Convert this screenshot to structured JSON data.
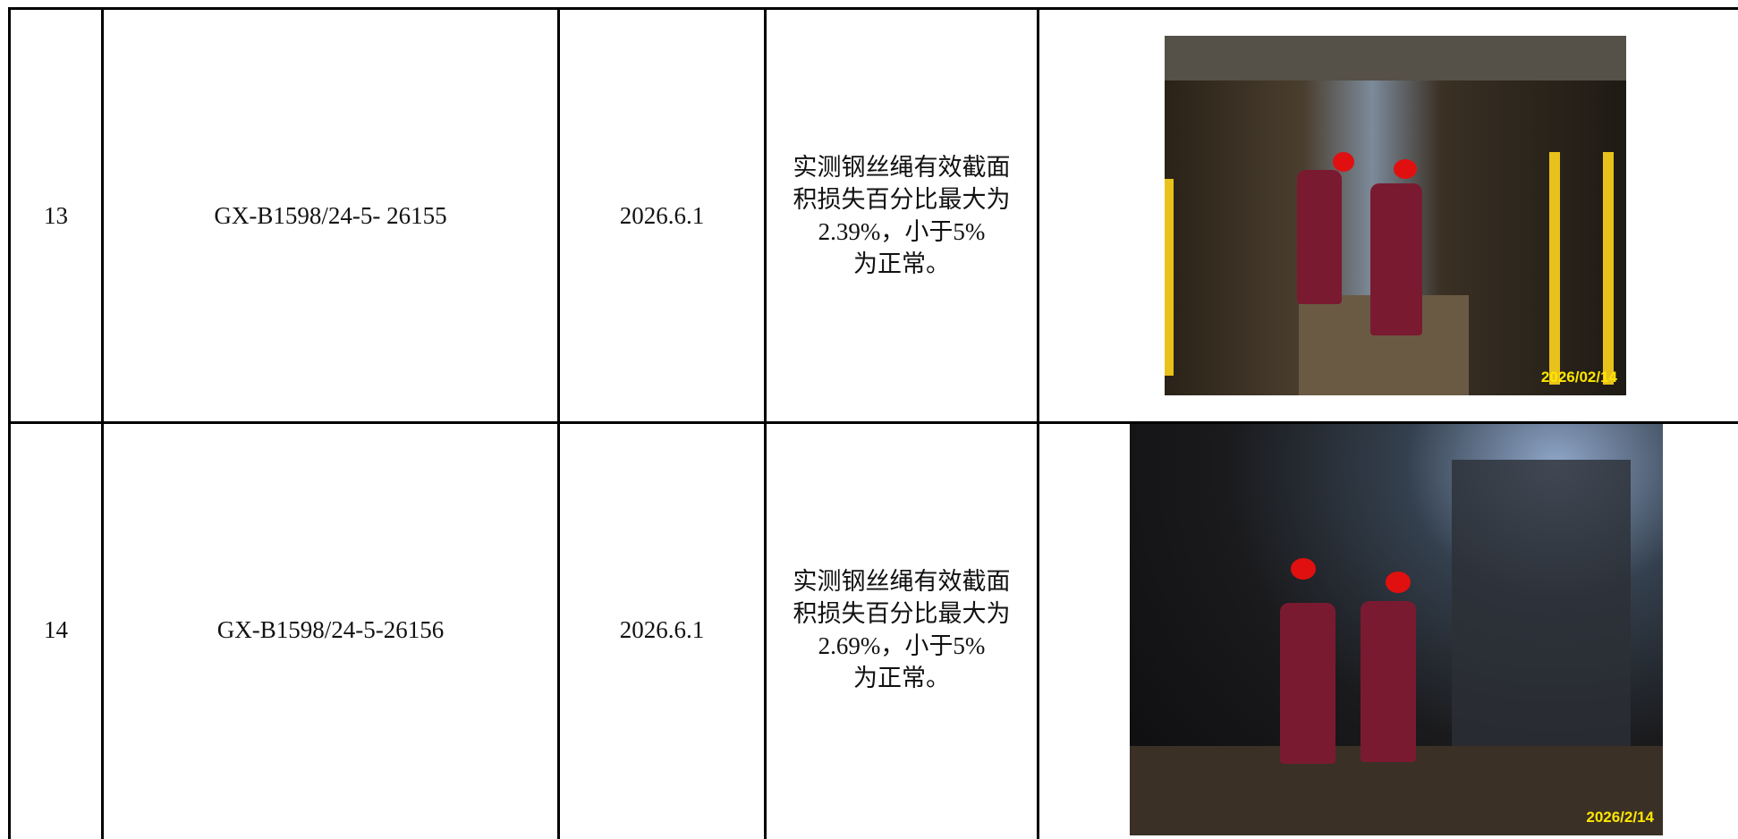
{
  "table": {
    "rows": [
      {
        "no": "13",
        "code": "GX-B1598/24-5- 26155",
        "date": "2026.6.1",
        "result": [
          "实测钢丝绳有效截面",
          "积损失百分比最大为",
          "2.39%，小于5%",
          "为正常。"
        ],
        "photo_stamp": "2026/02/14"
      },
      {
        "no": "14",
        "code": "GX-B1598/24-5-26156",
        "date": "2026.6.1",
        "result": [
          "实测钢丝绳有效截面",
          "积损失百分比最大为",
          "2.69%，小于5%",
          "为正常。"
        ],
        "photo_stamp": "2026/2/14"
      }
    ]
  }
}
